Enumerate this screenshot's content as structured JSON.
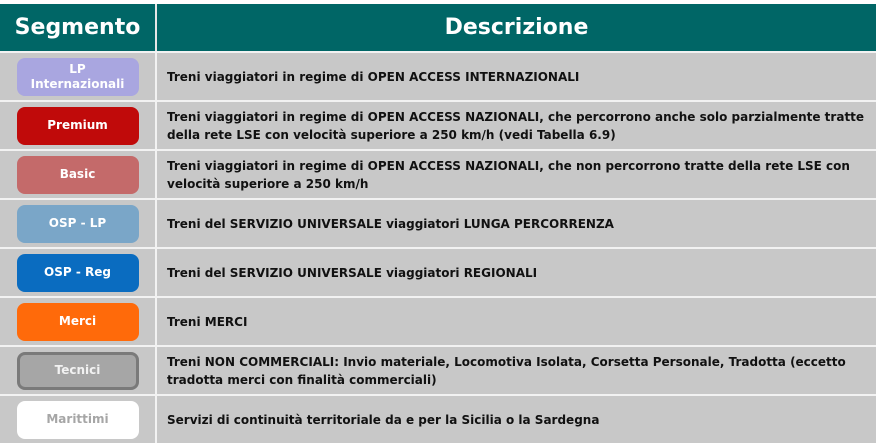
{
  "header": {
    "segment": "Segmento",
    "description": "Descrizione"
  },
  "rows": [
    {
      "segment": "LP Internazionali",
      "color": "#a9a6e0",
      "text_color": "#ffffff",
      "description": "Treni viaggiatori in regime di OPEN ACCESS INTERNAZIONALI"
    },
    {
      "segment": "Premium",
      "color": "#c00a0a",
      "text_color": "#ffffff",
      "description": "Treni viaggiatori in regime di OPEN ACCESS NAZIONALI, che percorrono anche solo parzialmente tratte della rete LSE con velocità superiore a 250 km/h (vedi Tabella 6.9)"
    },
    {
      "segment": "Basic",
      "color": "#c46a6a",
      "text_color": "#ffffff",
      "description": "Treni viaggiatori in regime di OPEN ACCESS NAZIONALI, che non percorrono tratte della rete LSE con velocità superiore a 250 km/h"
    },
    {
      "segment": "OSP - LP",
      "color": "#7aa6c8",
      "text_color": "#ffffff",
      "description": "Treni del SERVIZIO UNIVERSALE viaggiatori LUNGA PERCORRENZA"
    },
    {
      "segment": "OSP - Reg",
      "color": "#0a6cc0",
      "text_color": "#ffffff",
      "description": "Treni del SERVIZIO UNIVERSALE viaggiatori REGIONALI"
    },
    {
      "segment": "Merci",
      "color": "#ff6a0a",
      "text_color": "#ffffff",
      "description": "Treni MERCI"
    },
    {
      "segment": "Tecnici",
      "color": "#a6a6a6",
      "text_color": "#f2f2f2",
      "border": "#7a7a7a",
      "description": "Treni NON COMMERCIALI: Invio materiale, Locomotiva Isolata, Corsetta Personale, Tradotta (eccetto tradotta merci con finalità commerciali)"
    },
    {
      "segment": "Marittimi",
      "color": "#ffffff",
      "text_color": "#a6a6a6",
      "description": "Servizi di continuità territoriale da e per la Sicilia o la Sardegna"
    }
  ]
}
